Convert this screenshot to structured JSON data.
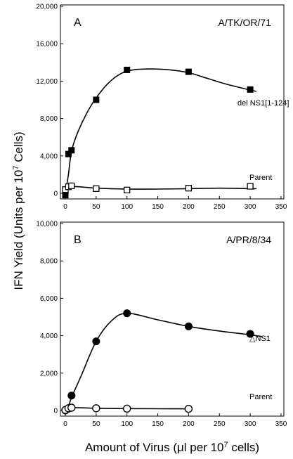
{
  "figure": {
    "ylabel": "IFN Yield (Units per 10",
    "ylabel_sup": "7",
    "ylabel_end": " Cells)",
    "xlabel": "Amount of Virus (μl per 10",
    "xlabel_sup": "7",
    "xlabel_end": " cells)"
  },
  "chart_data": [
    {
      "type": "scatter",
      "panel": "A",
      "strain": "A/TK/OR/71",
      "xlim": [
        0,
        350
      ],
      "ylim": [
        0,
        20000
      ],
      "x_ticks": [
        "0",
        "50",
        "100",
        "150",
        "200",
        "250",
        "300",
        "350"
      ],
      "y_ticks": [
        "0",
        "4,000",
        "8,000",
        "12,000",
        "16,000",
        "20,000"
      ],
      "x_tick_values": [
        0,
        50,
        100,
        150,
        200,
        250,
        300,
        350
      ],
      "y_tick_values": [
        0,
        4000,
        8000,
        12000,
        16000,
        20000
      ],
      "series": [
        {
          "name": "del NS1[1-124]",
          "marker": "filled-square",
          "x": [
            0,
            5,
            10,
            50,
            100,
            200,
            300
          ],
          "y": [
            -200,
            4200,
            4600,
            10000,
            13200,
            13000,
            11100
          ],
          "curve_x": [
            0,
            5,
            10,
            20,
            35,
            50,
            70,
            90,
            110,
            140,
            170,
            200,
            230,
            260,
            290,
            310
          ],
          "curve_y": [
            0,
            2000,
            4500,
            6500,
            8600,
            10200,
            11800,
            12800,
            13200,
            13300,
            13200,
            12900,
            12300,
            11700,
            11200,
            10900
          ]
        },
        {
          "name": "Parent",
          "marker": "open-square",
          "x": [
            0,
            5,
            10,
            50,
            100,
            200,
            300
          ],
          "y": [
            400,
            700,
            800,
            500,
            350,
            550,
            750
          ],
          "curve_x": [
            0,
            10,
            50,
            100,
            150,
            200,
            250,
            300,
            310
          ],
          "curve_y": [
            0,
            700,
            550,
            450,
            450,
            500,
            550,
            500,
            500
          ]
        }
      ]
    },
    {
      "type": "scatter",
      "panel": "B",
      "strain": "A/PR/8/34",
      "xlim": [
        0,
        350
      ],
      "ylim": [
        0,
        10000
      ],
      "x_ticks": [
        "0",
        "50",
        "100",
        "150",
        "200",
        "250",
        "300",
        "350"
      ],
      "y_ticks": [
        "0",
        "2,000",
        "4,000",
        "6,000",
        "8,000",
        "10,000"
      ],
      "x_tick_values": [
        0,
        50,
        100,
        150,
        200,
        250,
        300,
        350
      ],
      "y_tick_values": [
        0,
        2000,
        4000,
        6000,
        8000,
        10000
      ],
      "series": [
        {
          "name": "△NS1",
          "marker": "filled-circle",
          "x": [
            0,
            5,
            10,
            50,
            100,
            200,
            300
          ],
          "y": [
            0,
            100,
            800,
            3700,
            5200,
            4500,
            4100
          ],
          "curve_x": [
            0,
            5,
            10,
            25,
            50,
            75,
            100,
            150,
            200,
            250,
            300,
            320
          ],
          "curve_y": [
            0,
            200,
            700,
            1800,
            3700,
            4800,
            5200,
            4850,
            4500,
            4250,
            4050,
            3950
          ]
        },
        {
          "name": "Parent",
          "marker": "open-circle",
          "x": [
            0,
            5,
            10,
            50,
            100,
            200
          ],
          "y": [
            30,
            120,
            150,
            120,
            100,
            90
          ],
          "curve_x": [
            0,
            10,
            50,
            100,
            150,
            200
          ],
          "curve_y": [
            0,
            150,
            120,
            100,
            95,
            90
          ]
        }
      ]
    }
  ]
}
